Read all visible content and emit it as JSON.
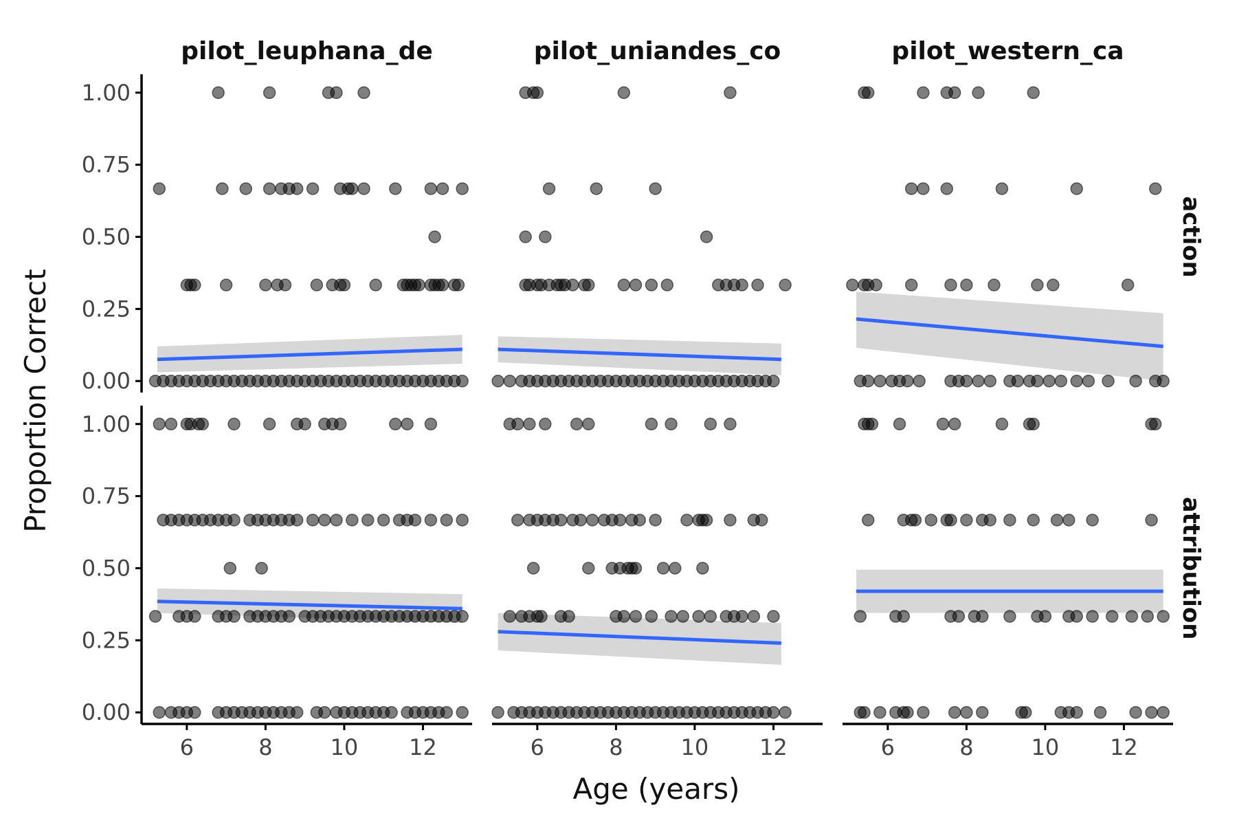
{
  "chart_data": {
    "type": "scatter",
    "xlabel": "Age (years)",
    "ylabel": "Proportion Correct",
    "xlim": [
      4.85,
      13.25
    ],
    "ylim": [
      -0.04,
      1.04
    ],
    "x_ticks": [
      6,
      8,
      10,
      12
    ],
    "y_ticks": [
      0,
      0.25,
      0.5,
      0.75,
      1
    ],
    "y_tick_labels": [
      "0.00",
      "0.25",
      "0.50",
      "0.75",
      "1.00"
    ],
    "columns": [
      "pilot_leuphana_de",
      "pilot_uniandes_co",
      "pilot_western_ca"
    ],
    "rows": [
      "action",
      "attribution"
    ],
    "fit_color": "#3366ff",
    "point_color": "#000000",
    "band_color": "#bdbdbd",
    "panels": [
      {
        "column": "pilot_leuphana_de",
        "row": "action",
        "fit": {
          "x": [
            5.25,
            13.0
          ],
          "y": [
            0.075,
            0.11
          ],
          "lo": [
            0.03,
            0.06
          ],
          "hi": [
            0.12,
            0.16
          ]
        },
        "points": [
          {
            "y": 1.0,
            "x": [
              6.8,
              8.1,
              9.6,
              9.8,
              10.5
            ]
          },
          {
            "y": 0.667,
            "x": [
              5.3,
              6.9,
              7.5,
              8.1,
              8.4,
              8.6,
              8.8,
              9.2,
              9.9,
              10.1,
              10.2,
              10.5,
              11.3,
              12.2,
              12.5,
              13.0
            ]
          },
          {
            "y": 0.5,
            "x": [
              12.3
            ]
          },
          {
            "y": 0.333,
            "x": [
              6.0,
              6.1,
              6.2,
              7.0,
              8.0,
              8.3,
              8.5,
              9.3,
              9.7,
              9.9,
              10.0,
              10.8,
              11.5,
              11.6,
              11.7,
              11.8,
              11.9,
              12.2,
              12.3,
              12.4,
              12.5,
              12.8,
              12.9
            ]
          },
          {
            "y": 0.0,
            "x": [
              5.2,
              5.4,
              5.6,
              5.8,
              6.0,
              6.2,
              6.4,
              6.6,
              6.8,
              7.0,
              7.2,
              7.4,
              7.6,
              7.8,
              8.0,
              8.2,
              8.4,
              8.6,
              8.8,
              9.0,
              9.2,
              9.4,
              9.6,
              9.8,
              10.0,
              10.2,
              10.4,
              10.6,
              10.8,
              11.0,
              11.2,
              11.4,
              11.6,
              11.8,
              12.0,
              12.2,
              12.4,
              12.6,
              12.8,
              13.0
            ]
          }
        ]
      },
      {
        "column": "pilot_uniandes_co",
        "row": "action",
        "fit": {
          "x": [
            5.0,
            12.2
          ],
          "y": [
            0.11,
            0.075
          ],
          "lo": [
            0.065,
            0.02
          ],
          "hi": [
            0.155,
            0.13
          ]
        },
        "points": [
          {
            "y": 1.0,
            "x": [
              5.7,
              5.9,
              6.0,
              8.2,
              10.9
            ]
          },
          {
            "y": 0.667,
            "x": [
              6.3,
              7.5,
              9.0
            ]
          },
          {
            "y": 0.5,
            "x": [
              5.7,
              6.2,
              10.3
            ]
          },
          {
            "y": 0.333,
            "x": [
              5.7,
              5.8,
              6.0,
              6.1,
              6.3,
              6.5,
              6.6,
              6.7,
              6.9,
              7.2,
              7.3,
              8.2,
              8.5,
              8.9,
              9.3,
              10.6,
              10.8,
              11.0,
              11.2,
              11.6,
              12.3
            ]
          },
          {
            "y": 0.0,
            "x": [
              5.0,
              5.3,
              5.6,
              5.8,
              6.0,
              6.2,
              6.4,
              6.6,
              6.8,
              7.0,
              7.2,
              7.4,
              7.6,
              7.8,
              8.0,
              8.2,
              8.4,
              8.6,
              8.8,
              9.0,
              9.2,
              9.4,
              9.6,
              9.8,
              10.0,
              10.2,
              10.4,
              10.6,
              10.8,
              11.0,
              11.2,
              11.4,
              11.6,
              11.8,
              12.0
            ]
          }
        ]
      },
      {
        "column": "pilot_western_ca",
        "row": "action",
        "fit": {
          "x": [
            5.2,
            13.0
          ],
          "y": [
            0.215,
            0.12
          ],
          "lo": [
            0.115,
            0.0
          ],
          "hi": [
            0.31,
            0.235
          ]
        },
        "points": [
          {
            "y": 1.0,
            "x": [
              5.4,
              5.5,
              6.9,
              7.5,
              7.7,
              8.3,
              9.7
            ]
          },
          {
            "y": 0.667,
            "x": [
              6.6,
              6.9,
              7.5,
              8.9,
              10.8,
              12.8
            ]
          },
          {
            "y": 0.333,
            "x": [
              5.1,
              5.4,
              5.5,
              5.7,
              6.6,
              7.6,
              8.0,
              8.7,
              9.8,
              10.2,
              12.1
            ]
          },
          {
            "y": 0.0,
            "x": [
              5.3,
              5.5,
              5.8,
              6.1,
              6.3,
              6.5,
              6.8,
              7.6,
              7.8,
              8.0,
              8.3,
              8.6,
              9.1,
              9.3,
              9.6,
              9.8,
              10.1,
              10.4,
              10.8,
              11.1,
              11.6,
              12.3,
              12.8,
              13.0
            ]
          }
        ]
      },
      {
        "column": "pilot_leuphana_de",
        "row": "attribution",
        "fit": {
          "x": [
            5.25,
            13.0
          ],
          "y": [
            0.385,
            0.36
          ],
          "lo": [
            0.345,
            0.31
          ],
          "hi": [
            0.43,
            0.41
          ]
        },
        "points": [
          {
            "y": 1.0,
            "x": [
              5.3,
              5.6,
              6.0,
              6.1,
              6.3,
              6.4,
              7.2,
              8.1,
              8.8,
              9.0,
              9.5,
              9.7,
              9.9,
              11.3,
              11.6,
              12.2
            ]
          },
          {
            "y": 0.667,
            "x": [
              5.4,
              5.6,
              5.8,
              6.0,
              6.2,
              6.4,
              6.6,
              6.8,
              7.0,
              7.2,
              7.6,
              7.8,
              8.0,
              8.2,
              8.4,
              8.6,
              8.8,
              9.2,
              9.5,
              9.8,
              10.2,
              10.6,
              11.0,
              11.4,
              11.6,
              11.8,
              12.2,
              12.6,
              13.0
            ]
          },
          {
            "y": 0.5,
            "x": [
              7.1,
              7.9
            ]
          },
          {
            "y": 0.333,
            "x": [
              5.2,
              5.8,
              6.0,
              6.2,
              6.8,
              7.0,
              7.2,
              7.6,
              7.8,
              8.0,
              8.2,
              8.4,
              8.6,
              9.0,
              9.2,
              9.4,
              9.6,
              9.8,
              10.0,
              10.2,
              10.4,
              10.6,
              10.8,
              11.0,
              11.2,
              11.4,
              11.6,
              11.8,
              12.0,
              12.2,
              12.4,
              12.6,
              12.8,
              13.0
            ]
          },
          {
            "y": 0.0,
            "x": [
              5.3,
              5.6,
              5.8,
              6.0,
              6.2,
              6.8,
              7.0,
              7.2,
              7.4,
              7.6,
              7.8,
              8.0,
              8.2,
              8.4,
              8.6,
              8.8,
              9.3,
              9.5,
              9.8,
              10.0,
              10.2,
              10.4,
              10.6,
              10.8,
              11.0,
              11.2,
              11.6,
              11.8,
              12.0,
              12.2,
              12.4,
              12.6,
              13.0
            ]
          }
        ]
      },
      {
        "column": "pilot_uniandes_co",
        "row": "attribution",
        "fit": {
          "x": [
            5.0,
            12.2
          ],
          "y": [
            0.28,
            0.24
          ],
          "lo": [
            0.215,
            0.165
          ],
          "hi": [
            0.345,
            0.31
          ]
        },
        "points": [
          {
            "y": 1.0,
            "x": [
              5.3,
              5.5,
              5.8,
              6.2,
              7.0,
              7.3,
              8.9,
              9.4,
              10.4,
              10.9
            ]
          },
          {
            "y": 0.667,
            "x": [
              5.5,
              5.8,
              6.0,
              6.2,
              6.4,
              6.6,
              6.9,
              7.1,
              7.4,
              7.7,
              7.9,
              8.1,
              8.4,
              8.6,
              9.0,
              9.8,
              10.1,
              10.2,
              10.3,
              10.9,
              11.5,
              11.7
            ]
          },
          {
            "y": 0.5,
            "x": [
              5.9,
              7.3,
              7.9,
              8.1,
              8.3,
              8.4,
              8.5,
              9.2,
              9.5,
              10.2
            ]
          },
          {
            "y": 0.333,
            "x": [
              5.3,
              5.6,
              5.8,
              6.0,
              6.1,
              6.6,
              6.8,
              8.0,
              8.2,
              8.5,
              8.9,
              9.4,
              9.7,
              10.1,
              10.4,
              10.8,
              11.0,
              11.2,
              11.5,
              12.0
            ]
          },
          {
            "y": 0.0,
            "x": [
              5.0,
              5.4,
              5.6,
              5.8,
              6.0,
              6.2,
              6.4,
              6.6,
              6.8,
              7.0,
              7.2,
              7.4,
              7.6,
              7.8,
              8.0,
              8.2,
              8.4,
              8.6,
              8.8,
              9.0,
              9.2,
              9.4,
              9.6,
              9.8,
              10.0,
              10.2,
              10.4,
              10.6,
              10.8,
              11.0,
              11.2,
              11.4,
              11.6,
              11.8,
              12.0,
              12.3
            ]
          }
        ]
      },
      {
        "column": "pilot_western_ca",
        "row": "attribution",
        "fit": {
          "x": [
            5.2,
            13.0
          ],
          "y": [
            0.42,
            0.42
          ],
          "lo": [
            0.345,
            0.345
          ],
          "hi": [
            0.495,
            0.495
          ]
        },
        "points": [
          {
            "y": 1.0,
            "x": [
              5.4,
              5.5,
              5.6,
              6.3,
              7.4,
              7.7,
              8.9,
              9.6,
              9.7,
              12.7,
              12.8
            ]
          },
          {
            "y": 0.667,
            "x": [
              5.5,
              6.4,
              6.6,
              6.7,
              7.1,
              7.5,
              7.6,
              8.0,
              8.4,
              8.6,
              9.1,
              9.7,
              10.3,
              10.6,
              11.2,
              12.7
            ]
          },
          {
            "y": 0.333,
            "x": [
              5.3,
              6.2,
              6.4,
              7.6,
              7.8,
              8.2,
              8.4,
              9.1,
              9.8,
              10.0,
              10.6,
              10.8,
              11.2,
              11.7,
              12.2,
              12.6,
              13.0
            ]
          },
          {
            "y": 0.0,
            "x": [
              5.3,
              5.4,
              5.8,
              6.2,
              6.4,
              6.5,
              6.9,
              7.7,
              8.0,
              8.4,
              9.4,
              9.5,
              10.4,
              10.6,
              10.8,
              11.4,
              12.3,
              12.7,
              13.0
            ]
          }
        ]
      }
    ]
  }
}
